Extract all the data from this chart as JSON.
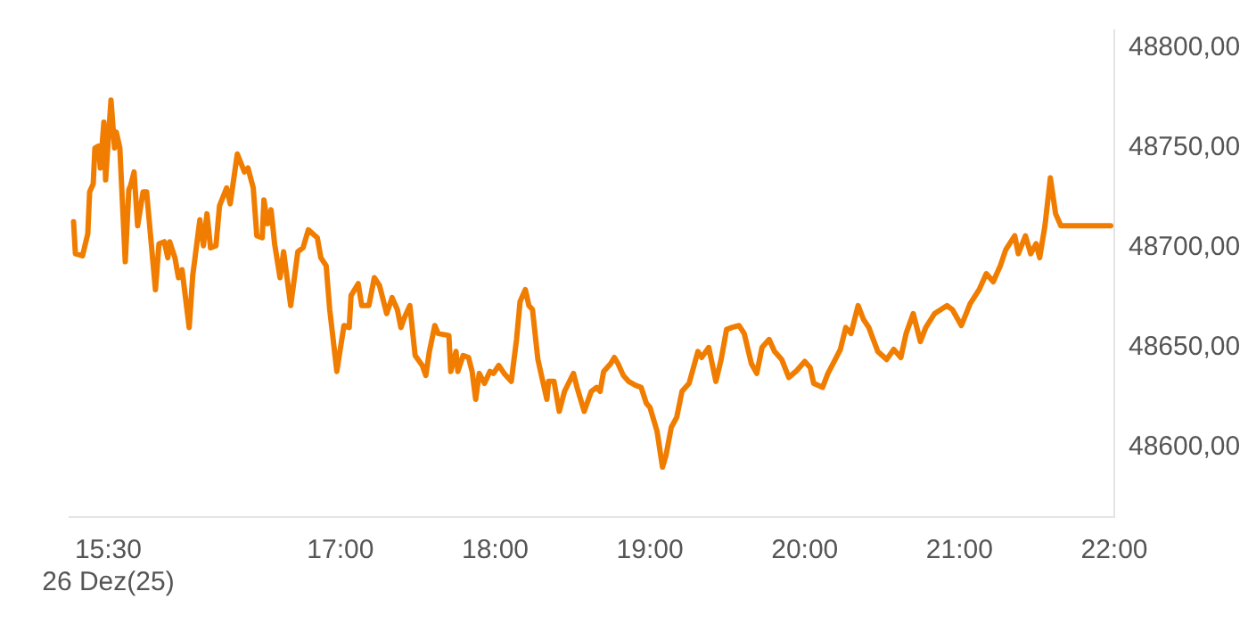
{
  "chart_data": {
    "type": "line",
    "marker": "none",
    "line_style": "solid",
    "xlim": [
      15.25,
      22
    ],
    "ylim": [
      48565,
      48809
    ],
    "xticks": [
      {
        "value": 15.5,
        "label": "15:30\n26 Dez(25)"
      },
      {
        "value": 17,
        "label": "17:00"
      },
      {
        "value": 18,
        "label": "18:00"
      },
      {
        "value": 19,
        "label": "19:00"
      },
      {
        "value": 20,
        "label": "20:00"
      },
      {
        "value": 21,
        "label": "21:00"
      },
      {
        "value": 22,
        "label": "22:00"
      }
    ],
    "yticks": [
      {
        "value": 48600,
        "label": "48600,00"
      },
      {
        "value": 48650,
        "label": "48650,00"
      },
      {
        "value": 48700,
        "label": "48700,00"
      },
      {
        "value": 48750,
        "label": "48750,00"
      },
      {
        "value": 48800,
        "label": "48800,00"
      }
    ],
    "x": [
      15.276,
      15.288,
      15.334,
      15.368,
      15.38,
      15.403,
      15.414,
      15.437,
      15.449,
      15.472,
      15.483,
      15.518,
      15.541,
      15.552,
      15.575,
      15.61,
      15.633,
      15.644,
      15.667,
      15.69,
      15.725,
      15.748,
      15.805,
      15.828,
      15.862,
      15.885,
      15.897,
      15.931,
      15.954,
      15.977,
      16.023,
      16.046,
      16.092,
      16.115,
      16.138,
      16.161,
      16.196,
      16.219,
      16.265,
      16.288,
      16.334,
      16.38,
      16.403,
      16.437,
      16.46,
      16.495,
      16.506,
      16.529,
      16.552,
      16.575,
      16.61,
      16.633,
      16.679,
      16.725,
      16.759,
      16.793,
      16.851,
      16.874,
      16.908,
      16.931,
      16.977,
      17.023,
      17.057,
      17.069,
      17.115,
      17.138,
      17.184,
      17.219,
      17.253,
      17.299,
      17.334,
      17.368,
      17.391,
      17.414,
      17.449,
      17.483,
      17.529,
      17.552,
      17.575,
      17.61,
      17.632,
      17.701,
      17.713,
      17.747,
      17.759,
      17.793,
      17.828,
      17.851,
      17.874,
      17.897,
      17.931,
      17.966,
      17.989,
      18.023,
      18.058,
      18.104,
      18.138,
      18.161,
      18.195,
      18.218,
      18.241,
      18.276,
      18.299,
      18.334,
      18.345,
      18.38,
      18.414,
      18.448,
      18.506,
      18.529,
      18.575,
      18.621,
      18.655,
      18.678,
      18.701,
      18.747,
      18.77,
      18.793,
      18.828,
      18.862,
      18.908,
      18.943,
      18.977,
      19.0,
      19.046,
      19.081,
      19.104,
      19.138,
      19.173,
      19.207,
      19.253,
      19.31,
      19.334,
      19.38,
      19.426,
      19.46,
      19.495,
      19.529,
      19.575,
      19.609,
      19.655,
      19.69,
      19.724,
      19.77,
      19.805,
      19.851,
      19.897,
      19.943,
      20.0,
      20.035,
      20.058,
      20.115,
      20.15,
      20.184,
      20.23,
      20.265,
      20.299,
      20.345,
      20.38,
      20.414,
      20.472,
      20.529,
      20.575,
      20.621,
      20.655,
      20.701,
      20.747,
      20.782,
      20.839,
      20.92,
      20.954,
      21.012,
      21.069,
      21.127,
      21.173,
      21.218,
      21.264,
      21.299,
      21.357,
      21.38,
      21.426,
      21.46,
      21.495,
      21.518,
      21.552,
      21.587,
      21.621,
      21.655,
      21.977
    ],
    "series": [
      {
        "color": "#f07d00",
        "values": [
          48713,
          48697,
          48696,
          48707,
          48728,
          48732,
          48750,
          48751,
          48740,
          48763,
          48734,
          48774,
          48750,
          48758,
          48750,
          48693,
          48729,
          48731,
          48738,
          48711,
          48728,
          48728,
          48679,
          48702,
          48703,
          48695,
          48703,
          48695,
          48685,
          48689,
          48660,
          48686,
          48714,
          48701,
          48717,
          48700,
          48701,
          48721,
          48730,
          48722,
          48747,
          48738,
          48740,
          48730,
          48706,
          48705,
          48724,
          48712,
          48719,
          48702,
          48685,
          48698,
          48671,
          48698,
          48700,
          48709,
          48705,
          48695,
          48691,
          48669,
          48638,
          48661,
          48660,
          48676,
          48682,
          48671,
          48671,
          48685,
          48681,
          48667,
          48675,
          48669,
          48660,
          48665,
          48671,
          48646,
          48641,
          48636,
          48648,
          48661,
          48657,
          48656,
          48638,
          48648,
          48638,
          48646,
          48645,
          48638,
          48624,
          48637,
          48632,
          48638,
          48637,
          48641,
          48637,
          48633,
          48654,
          48673,
          48679,
          48671,
          48669,
          48644,
          48636,
          48624,
          48633,
          48633,
          48618,
          48628,
          48637,
          48630,
          48618,
          48628,
          48630,
          48628,
          48638,
          48642,
          48645,
          48642,
          48636,
          48633,
          48631,
          48630,
          48622,
          48620,
          48608,
          48590,
          48596,
          48610,
          48615,
          48628,
          48632,
          48648,
          48645,
          48650,
          48633,
          48644,
          48659,
          48660,
          48661,
          48657,
          48642,
          48637,
          48650,
          48654,
          48648,
          48644,
          48635,
          48638,
          48643,
          48640,
          48632,
          48630,
          48637,
          48642,
          48649,
          48660,
          48657,
          48671,
          48664,
          48660,
          48648,
          48644,
          48649,
          48645,
          48657,
          48667,
          48653,
          48660,
          48667,
          48671,
          48669,
          48661,
          48672,
          48679,
          48687,
          48683,
          48691,
          48699,
          48706,
          48697,
          48706,
          48697,
          48702,
          48695,
          48711,
          48735,
          48717,
          48711,
          48711
        ]
      }
    ]
  }
}
